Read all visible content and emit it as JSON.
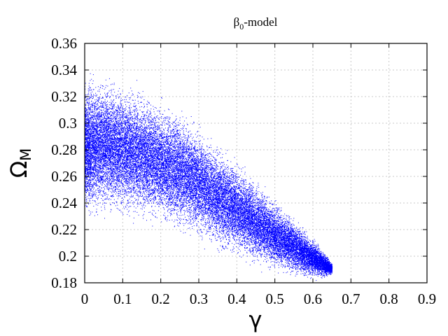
{
  "chart_data": {
    "type": "scatter",
    "title": {
      "base": "β",
      "sub": "0",
      "rest": "-model"
    },
    "xlabel": "γ",
    "ylabel": {
      "base": "Ω",
      "sub": "M"
    },
    "xlim": [
      0,
      0.9
    ],
    "ylim": [
      0.18,
      0.36
    ],
    "xticks": [
      "0",
      "0.1",
      "0.2",
      "0.3",
      "0.4",
      "0.5",
      "0.6",
      "0.7",
      "0.8",
      "0.9"
    ],
    "yticks": [
      "0.18",
      "0.2",
      "0.22",
      "0.24",
      "0.26",
      "0.28",
      "0.3",
      "0.32",
      "0.34",
      "0.36"
    ],
    "grid": true,
    "point_color": "#0000ff",
    "region": {
      "description_points": "dense scatter of MCMC samples",
      "upper_boundary": [
        [
          0.0,
          0.344
        ],
        [
          0.05,
          0.342
        ],
        [
          0.1,
          0.338
        ],
        [
          0.15,
          0.333
        ],
        [
          0.2,
          0.325
        ],
        [
          0.25,
          0.316
        ],
        [
          0.3,
          0.304
        ],
        [
          0.35,
          0.29
        ],
        [
          0.4,
          0.276
        ],
        [
          0.45,
          0.262
        ],
        [
          0.5,
          0.247
        ],
        [
          0.55,
          0.232
        ],
        [
          0.6,
          0.216
        ],
        [
          0.63,
          0.205
        ],
        [
          0.65,
          0.195
        ]
      ],
      "lower_boundary": [
        [
          0.0,
          0.221
        ],
        [
          0.05,
          0.224
        ],
        [
          0.1,
          0.222
        ],
        [
          0.15,
          0.219
        ],
        [
          0.2,
          0.215
        ],
        [
          0.25,
          0.211
        ],
        [
          0.3,
          0.205
        ],
        [
          0.35,
          0.199
        ],
        [
          0.4,
          0.194
        ],
        [
          0.45,
          0.189
        ],
        [
          0.5,
          0.185
        ],
        [
          0.55,
          0.182
        ],
        [
          0.6,
          0.181
        ],
        [
          0.63,
          0.182
        ],
        [
          0.65,
          0.186
        ]
      ]
    }
  }
}
